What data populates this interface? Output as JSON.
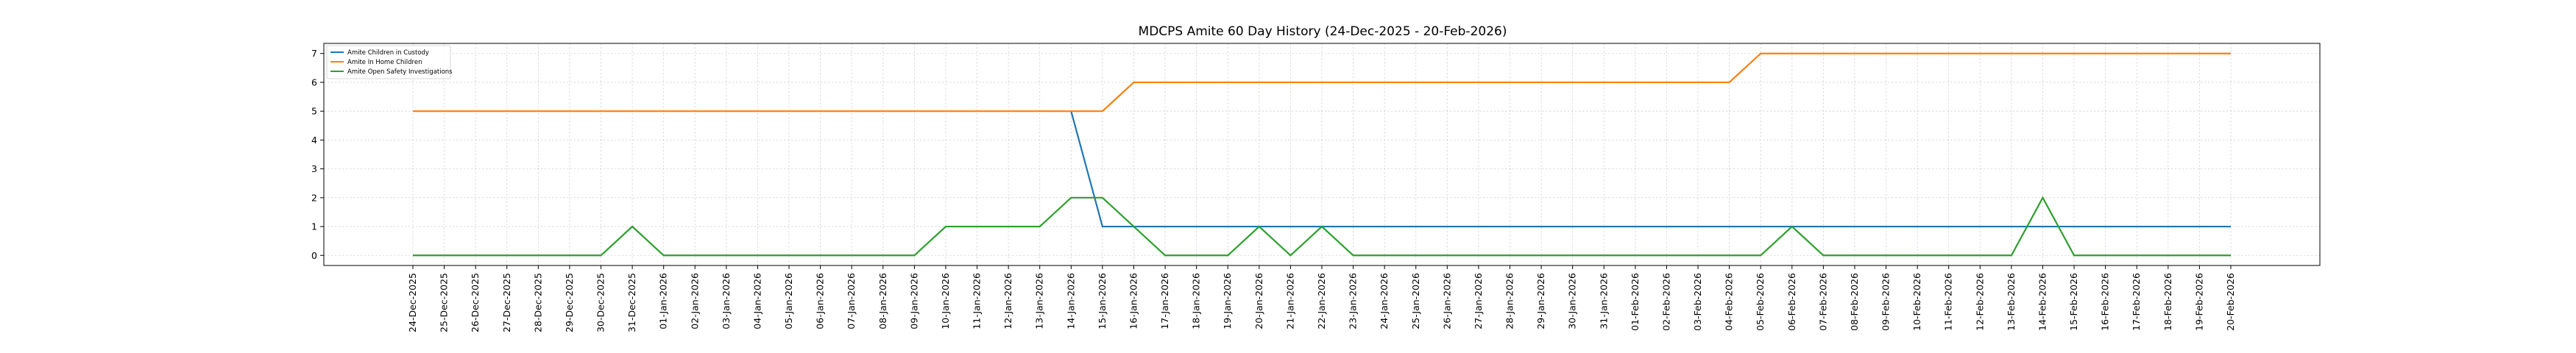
{
  "chart_data": {
    "type": "line",
    "title": "MDCPS Amite 60 Day History (24-Dec-2025 - 20-Feb-2026)",
    "xlabel": "",
    "ylabel": "",
    "ylim": [
      -0.35,
      7.35
    ],
    "yticks": [
      0,
      1,
      2,
      3,
      4,
      5,
      6,
      7
    ],
    "grid": true,
    "legend_position": "top-left",
    "x": [
      "24-Dec-2025",
      "25-Dec-2025",
      "26-Dec-2025",
      "27-Dec-2025",
      "28-Dec-2025",
      "29-Dec-2025",
      "30-Dec-2025",
      "31-Dec-2025",
      "01-Jan-2026",
      "02-Jan-2026",
      "03-Jan-2026",
      "04-Jan-2026",
      "05-Jan-2026",
      "06-Jan-2026",
      "07-Jan-2026",
      "08-Jan-2026",
      "09-Jan-2026",
      "10-Jan-2026",
      "11-Jan-2026",
      "12-Jan-2026",
      "13-Jan-2026",
      "14-Jan-2026",
      "15-Jan-2026",
      "16-Jan-2026",
      "17-Jan-2026",
      "18-Jan-2026",
      "19-Jan-2026",
      "20-Jan-2026",
      "21-Jan-2026",
      "22-Jan-2026",
      "23-Jan-2026",
      "24-Jan-2026",
      "25-Jan-2026",
      "26-Jan-2026",
      "27-Jan-2026",
      "28-Jan-2026",
      "29-Jan-2026",
      "30-Jan-2026",
      "31-Jan-2026",
      "01-Feb-2026",
      "02-Feb-2026",
      "03-Feb-2026",
      "04-Feb-2026",
      "05-Feb-2026",
      "06-Feb-2026",
      "07-Feb-2026",
      "08-Feb-2026",
      "09-Feb-2026",
      "10-Feb-2026",
      "11-Feb-2026",
      "12-Feb-2026",
      "13-Feb-2026",
      "14-Feb-2026",
      "15-Feb-2026",
      "16-Feb-2026",
      "17-Feb-2026",
      "18-Feb-2026",
      "19-Feb-2026",
      "20-Feb-2026"
    ],
    "series": [
      {
        "name": "Amite Children in Custody",
        "color": "#1f77b4",
        "values": [
          null,
          null,
          null,
          null,
          null,
          null,
          null,
          null,
          null,
          null,
          null,
          null,
          null,
          null,
          null,
          null,
          null,
          null,
          null,
          null,
          null,
          5,
          1,
          1,
          1,
          1,
          1,
          1,
          1,
          1,
          1,
          1,
          1,
          1,
          1,
          1,
          1,
          1,
          1,
          1,
          1,
          1,
          1,
          1,
          1,
          1,
          1,
          1,
          1,
          1,
          1,
          1,
          1,
          1,
          1,
          1,
          1,
          1,
          1
        ]
      },
      {
        "name": "Amite In Home Children",
        "color": "#ff7f0e",
        "values": [
          5,
          5,
          5,
          5,
          5,
          5,
          5,
          5,
          5,
          5,
          5,
          5,
          5,
          5,
          5,
          5,
          5,
          5,
          5,
          5,
          5,
          5,
          5,
          6,
          6,
          6,
          6,
          6,
          6,
          6,
          6,
          6,
          6,
          6,
          6,
          6,
          6,
          6,
          6,
          6,
          6,
          6,
          6,
          7,
          7,
          7,
          7,
          7,
          7,
          7,
          7,
          7,
          7,
          7,
          7,
          7,
          7,
          7,
          7
        ]
      },
      {
        "name": "Amite Open Safety Investigations",
        "color": "#2ca02c",
        "values": [
          0,
          0,
          0,
          0,
          0,
          0,
          0,
          1,
          0,
          0,
          0,
          0,
          0,
          0,
          0,
          0,
          0,
          1,
          1,
          1,
          1,
          2,
          2,
          1,
          0,
          0,
          0,
          1,
          0,
          1,
          0,
          0,
          0,
          0,
          0,
          0,
          0,
          0,
          0,
          0,
          0,
          0,
          0,
          0,
          1,
          0,
          0,
          0,
          0,
          0,
          0,
          0,
          2,
          0,
          0,
          0,
          0,
          0,
          0
        ]
      }
    ]
  }
}
